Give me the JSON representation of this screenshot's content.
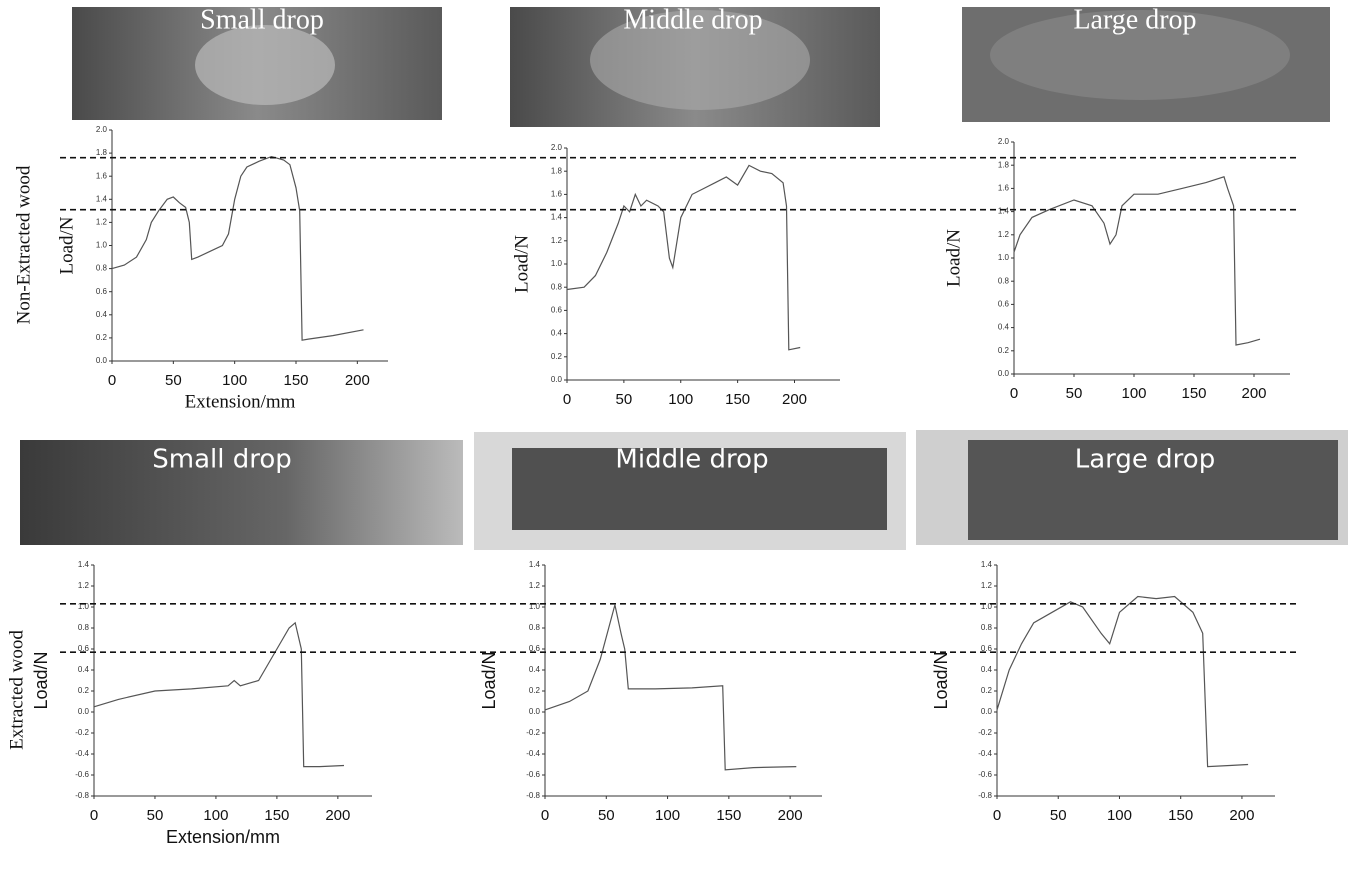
{
  "photos": [
    {
      "label": "Small drop"
    },
    {
      "label": "Middle drop"
    },
    {
      "label": "Large drop"
    },
    {
      "label": "Small drop"
    },
    {
      "label": "Middle drop"
    },
    {
      "label": "Large drop"
    }
  ],
  "row_labels": [
    "Non-Extracted wood",
    "Extracted wood"
  ],
  "chart_data": [
    {
      "type": "line",
      "ylabel": "Load/N",
      "xlabel": "Extension/mm",
      "xlim": [
        0,
        225
      ],
      "ylim": [
        0,
        2
      ],
      "xticks": [
        0,
        50,
        100,
        150,
        200
      ],
      "yticks": [
        {
          "value": 0,
          "label": "0.0"
        },
        0.2,
        0.4,
        0.6,
        0.8,
        {
          "value": 1,
          "label": "1.0"
        },
        1.2,
        1.4,
        1.6,
        1.8,
        {
          "value": 2,
          "label": "2.0"
        }
      ],
      "hlines": [
        1.76,
        1.31
      ],
      "x": [
        0,
        10,
        20,
        28,
        32,
        38,
        45,
        50,
        55,
        60,
        63,
        65,
        70,
        80,
        90,
        95,
        100,
        105,
        110,
        120,
        130,
        140,
        145,
        150,
        153,
        155,
        160,
        180,
        205
      ],
      "series": [
        {
          "color": "#555555",
          "values": [
            0.8,
            0.83,
            0.9,
            1.05,
            1.2,
            1.3,
            1.4,
            1.42,
            1.37,
            1.33,
            1.2,
            0.88,
            0.9,
            0.95,
            1.0,
            1.1,
            1.4,
            1.6,
            1.68,
            1.73,
            1.77,
            1.74,
            1.7,
            1.5,
            1.3,
            0.18,
            0.19,
            0.22,
            0.27
          ]
        }
      ]
    },
    {
      "type": "line",
      "ylabel": "Load/N",
      "xlim": [
        0,
        240
      ],
      "ylim": [
        0,
        2
      ],
      "xticks": [
        0,
        50,
        100,
        150,
        200
      ],
      "yticks": [
        {
          "value": 0,
          "label": "0.0"
        },
        0.2,
        0.4,
        0.6,
        0.8,
        {
          "value": 1,
          "label": "1.0"
        },
        1.2,
        1.4,
        1.6,
        1.8,
        {
          "value": 2,
          "label": "2.0"
        }
      ],
      "x": [
        0,
        15,
        25,
        35,
        45,
        50,
        55,
        60,
        65,
        70,
        80,
        85,
        90,
        93,
        100,
        110,
        120,
        130,
        140,
        150,
        160,
        170,
        180,
        190,
        193,
        195,
        205
      ],
      "series": [
        {
          "color": "#555555",
          "values": [
            0.78,
            0.8,
            0.9,
            1.1,
            1.35,
            1.5,
            1.45,
            1.6,
            1.5,
            1.55,
            1.5,
            1.45,
            1.05,
            0.97,
            1.4,
            1.6,
            1.65,
            1.7,
            1.75,
            1.68,
            1.85,
            1.8,
            1.78,
            1.7,
            1.5,
            0.26,
            0.28
          ]
        }
      ]
    },
    {
      "type": "line",
      "ylabel": "Load/N",
      "xlim": [
        0,
        230
      ],
      "ylim": [
        0,
        2
      ],
      "xticks": [
        0,
        50,
        100,
        150,
        200
      ],
      "yticks": [
        {
          "value": 0,
          "label": "0.0"
        },
        0.2,
        0.4,
        0.6,
        0.8,
        {
          "value": 1,
          "label": "1.0"
        },
        1.2,
        1.4,
        1.6,
        1.8,
        {
          "value": 2,
          "label": "2.0"
        }
      ],
      "x": [
        0,
        5,
        15,
        30,
        50,
        65,
        75,
        80,
        85,
        90,
        100,
        120,
        140,
        160,
        175,
        178,
        183,
        185,
        195,
        205
      ],
      "series": [
        {
          "color": "#555555",
          "values": [
            1.05,
            1.2,
            1.35,
            1.42,
            1.5,
            1.45,
            1.3,
            1.12,
            1.2,
            1.45,
            1.55,
            1.55,
            1.6,
            1.65,
            1.7,
            1.6,
            1.45,
            0.25,
            0.27,
            0.3
          ]
        }
      ]
    },
    {
      "type": "line",
      "ylabel": "Load/N",
      "xlabel": "Extension/mm",
      "xlim": [
        0,
        228
      ],
      "ylim": [
        -0.8,
        1.4
      ],
      "xticks": [
        0,
        50,
        100,
        150,
        200
      ],
      "yticks": [
        -0.8,
        -0.6,
        -0.4,
        -0.2,
        {
          "value": 0,
          "label": "0.0"
        },
        0.2,
        0.4,
        0.6,
        0.8,
        {
          "value": 1,
          "label": "1.0"
        },
        1.2,
        1.4
      ],
      "hlines": [
        1.03,
        0.57
      ],
      "x": [
        0,
        20,
        50,
        80,
        110,
        115,
        120,
        135,
        145,
        155,
        160,
        165,
        170,
        172,
        185,
        205
      ],
      "series": [
        {
          "color": "#555555",
          "values": [
            0.05,
            0.12,
            0.2,
            0.22,
            0.25,
            0.3,
            0.25,
            0.3,
            0.5,
            0.7,
            0.8,
            0.85,
            0.6,
            -0.52,
            -0.52,
            -0.51
          ]
        }
      ]
    },
    {
      "type": "line",
      "ylabel": "Load/N",
      "xlim": [
        0,
        226
      ],
      "ylim": [
        -0.8,
        1.4
      ],
      "xticks": [
        0,
        50,
        100,
        150,
        200
      ],
      "yticks": [
        -0.8,
        -0.6,
        -0.4,
        -0.2,
        {
          "value": 0,
          "label": "0.0"
        },
        0.2,
        0.4,
        0.6,
        0.8,
        {
          "value": 1,
          "label": "1.0"
        },
        1.2,
        1.4
      ],
      "x": [
        0,
        20,
        35,
        45,
        52,
        57,
        62,
        65,
        68,
        90,
        120,
        145,
        147,
        170,
        205
      ],
      "series": [
        {
          "color": "#555555",
          "values": [
            0.02,
            0.1,
            0.2,
            0.5,
            0.8,
            1.02,
            0.75,
            0.6,
            0.22,
            0.22,
            0.23,
            0.25,
            -0.55,
            -0.53,
            -0.52
          ]
        }
      ]
    },
    {
      "type": "line",
      "ylabel": "Load/N",
      "xlim": [
        0,
        227
      ],
      "ylim": [
        -0.8,
        1.4
      ],
      "xticks": [
        0,
        50,
        100,
        150,
        200
      ],
      "yticks": [
        -0.8,
        -0.6,
        -0.4,
        -0.2,
        {
          "value": 0,
          "label": "0.0"
        },
        0.2,
        0.4,
        0.6,
        0.8,
        {
          "value": 1,
          "label": "1.0"
        },
        1.2,
        1.4
      ],
      "x": [
        0,
        10,
        20,
        30,
        45,
        60,
        70,
        85,
        92,
        100,
        115,
        130,
        145,
        160,
        168,
        172,
        190,
        205
      ],
      "series": [
        {
          "color": "#555555",
          "values": [
            0.02,
            0.4,
            0.65,
            0.85,
            0.95,
            1.05,
            1.0,
            0.75,
            0.65,
            0.95,
            1.1,
            1.08,
            1.1,
            0.95,
            0.75,
            -0.52,
            -0.51,
            -0.5
          ]
        }
      ]
    }
  ]
}
